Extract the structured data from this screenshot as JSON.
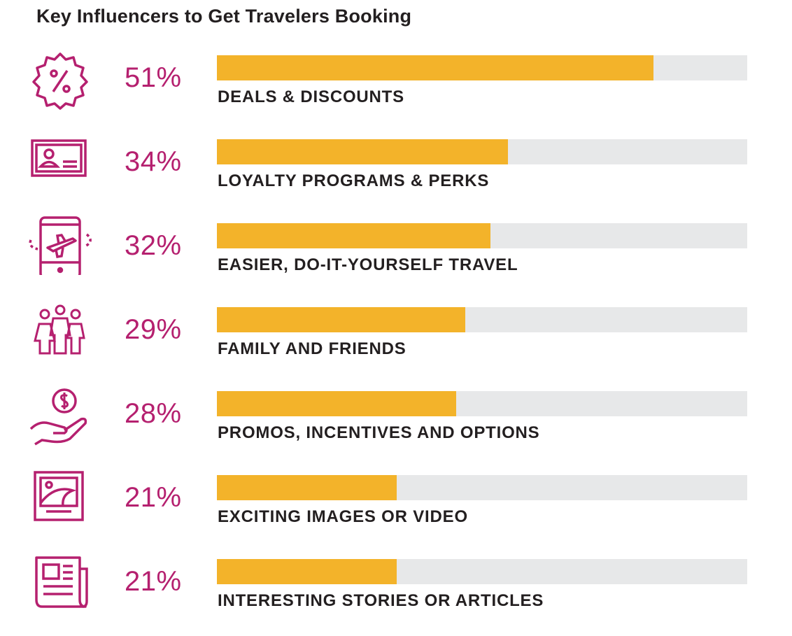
{
  "chart_data": {
    "type": "bar",
    "orientation": "horizontal",
    "title": "Key Influencers to Get Travelers Booking",
    "xlim": [
      0,
      62
    ],
    "grid": false,
    "legend": "none",
    "categories": [
      "DEALS & DISCOUNTS",
      "LOYALTY PROGRAMS & PERKS",
      "EASIER, DO-IT-YOURSELF TRAVEL",
      "FAMILY AND FRIENDS",
      "PROMOS, INCENTIVES AND OPTIONS",
      "EXCITING IMAGES OR VIDEO",
      "INTERESTING STORIES OR ARTICLES"
    ],
    "values": [
      51,
      34,
      32,
      29,
      28,
      21,
      21
    ],
    "value_labels": [
      "51%",
      "34%",
      "32%",
      "29%",
      "28%",
      "21%",
      "21%"
    ],
    "icons": [
      "discount-badge-icon",
      "id-card-icon",
      "mobile-flight-icon",
      "family-icon",
      "money-hand-icon",
      "picture-frame-icon",
      "newspaper-icon"
    ],
    "colors": {
      "bar": "#f3b32a",
      "track": "#e7e8e9",
      "accent": "#b5206f",
      "text": "#231f20"
    }
  }
}
